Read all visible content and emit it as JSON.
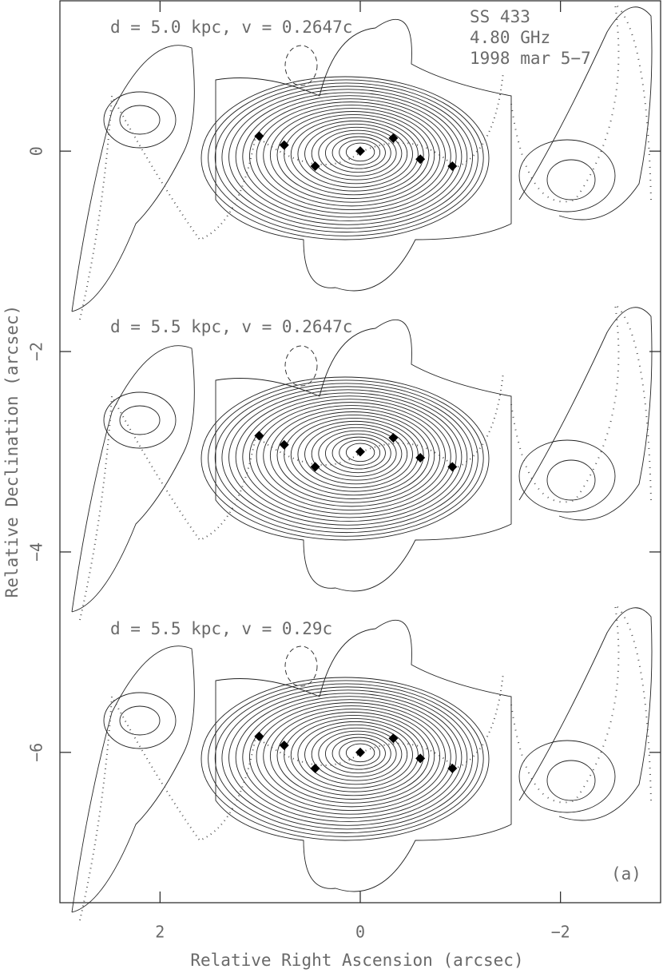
{
  "chart_data": {
    "type": "scatter",
    "xlabel": "Relative Right Ascension (arcsec)",
    "ylabel": "Relative Declination (arcsec)",
    "xlim": [
      3,
      -3
    ],
    "ylim": [
      -7.5,
      1.5
    ],
    "xticks": [
      2,
      0,
      {
        "value": -2,
        "label": "−2"
      }
    ],
    "yticks": [
      0,
      {
        "value": -2,
        "label": "−2"
      },
      {
        "value": -4,
        "label": "−4"
      },
      {
        "value": -6,
        "label": "−6"
      }
    ],
    "annotations": [
      "d = 5.0 kpc, v = 0.2647c",
      "d = 5.5 kpc, v = 0.2647c",
      "d = 5.5 kpc, v = 0.29c",
      "SS 433",
      "4.80 GHz",
      "1998 mar 5−7",
      "(a)"
    ],
    "marker": "diamond",
    "series": [
      {
        "color": "#000000",
        "x": [
          1.01,
          0.76,
          0.45,
          0,
          -0.33,
          -0.6,
          -0.92
        ],
        "values": [
          0.15,
          0.06,
          -0.15,
          0,
          0.13,
          -0.08,
          -0.15
        ]
      },
      {
        "color": "#000000",
        "x": [
          1.01,
          0.76,
          0.45,
          0,
          -0.33,
          -0.6,
          -0.92
        ],
        "values": [
          -2.84,
          -2.93,
          -3.15,
          -3.0,
          -2.86,
          -3.06,
          -3.15
        ]
      },
      {
        "color": "#000000",
        "x": [
          1.01,
          0.76,
          0.45,
          0,
          -0.33,
          -0.6,
          -0.92
        ],
        "values": [
          -5.84,
          -5.93,
          -6.16,
          -6.0,
          -5.86,
          -6.06,
          -6.16
        ]
      }
    ]
  }
}
